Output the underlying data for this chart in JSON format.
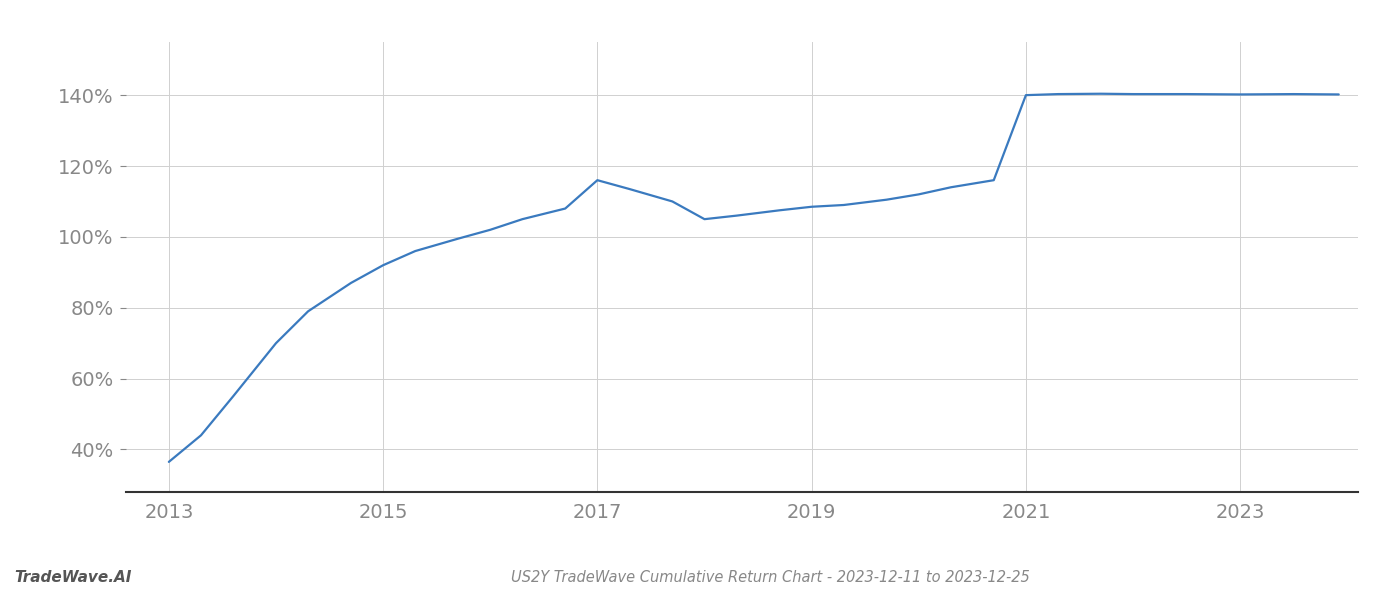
{
  "x_years": [
    2013.0,
    2013.3,
    2013.6,
    2014.0,
    2014.3,
    2014.7,
    2015.0,
    2015.3,
    2015.7,
    2016.0,
    2016.3,
    2016.7,
    2017.0,
    2017.3,
    2017.7,
    2018.0,
    2018.3,
    2018.7,
    2019.0,
    2019.3,
    2019.7,
    2020.0,
    2020.3,
    2020.7,
    2021.0,
    2021.3,
    2021.7,
    2022.0,
    2022.5,
    2023.0,
    2023.5,
    2023.92
  ],
  "y_values": [
    36.5,
    44.0,
    55.0,
    70.0,
    79.0,
    87.0,
    92.0,
    96.0,
    99.5,
    102.0,
    105.0,
    108.0,
    116.0,
    113.5,
    110.0,
    105.0,
    106.0,
    107.5,
    108.5,
    109.0,
    110.5,
    112.0,
    114.0,
    116.0,
    140.0,
    140.3,
    140.4,
    140.3,
    140.3,
    140.2,
    140.3,
    140.2
  ],
  "line_color": "#3a7abf",
  "line_width": 1.6,
  "background_color": "#ffffff",
  "grid_color": "#d0d0d0",
  "ytick_labels": [
    "40%",
    "60%",
    "80%",
    "100%",
    "120%",
    "140%"
  ],
  "ytick_values": [
    40,
    60,
    80,
    100,
    120,
    140
  ],
  "xtick_labels": [
    "2013",
    "2015",
    "2017",
    "2019",
    "2021",
    "2023"
  ],
  "xtick_values": [
    2013,
    2015,
    2017,
    2019,
    2021,
    2023
  ],
  "ylim": [
    28,
    155
  ],
  "xlim": [
    2012.6,
    2024.1
  ],
  "title": "US2Y TradeWave Cumulative Return Chart - 2023-12-11 to 2023-12-25",
  "watermark": "TradeWave.AI",
  "title_fontsize": 10.5,
  "watermark_fontsize": 11,
  "tick_fontsize": 14,
  "xtick_fontsize": 14,
  "spine_color": "#333333"
}
